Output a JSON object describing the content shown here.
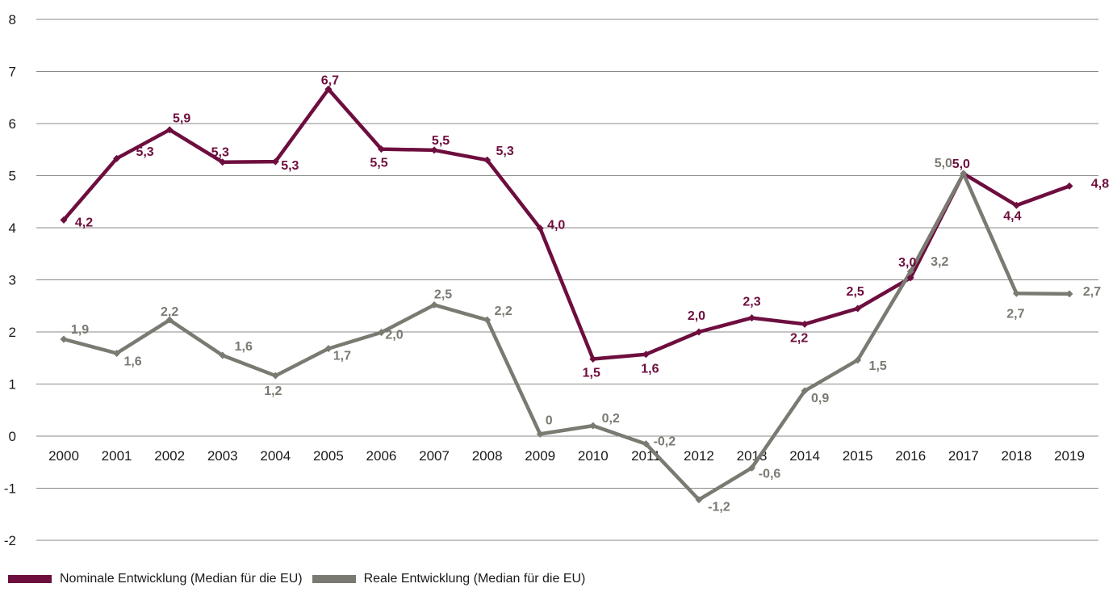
{
  "chart_data": {
    "type": "line",
    "categories": [
      "2000",
      "2001",
      "2002",
      "2003",
      "2004",
      "2005",
      "2006",
      "2007",
      "2008",
      "2009",
      "2010",
      "2011",
      "2012",
      "2013",
      "2014",
      "2015",
      "2016",
      "2017",
      "2018",
      "2019"
    ],
    "ylim": [
      -2,
      8
    ],
    "yticks": [
      "8",
      "7",
      "6",
      "5",
      "4",
      "3",
      "2",
      "1",
      "0",
      "-1",
      "-2"
    ],
    "grid": true,
    "legend_position": "bottom-left",
    "series": [
      {
        "name": "Nominale Entwicklung (Median für die EU)",
        "color": "#6d0e3e",
        "values": [
          4.15,
          5.33,
          5.88,
          5.26,
          5.27,
          6.66,
          5.51,
          5.49,
          5.3,
          3.99,
          1.48,
          1.57,
          2.0,
          2.27,
          2.15,
          2.45,
          3.04,
          5.04,
          4.43,
          4.8
        ],
        "labels": [
          "4,2",
          "5,3",
          "5,9",
          "5,3",
          "5,3",
          "6,7",
          "5,5",
          "5,5",
          "5,3",
          "4,0",
          "1,5",
          "1,6",
          "2,0",
          "2,3",
          "2,2",
          "2,5",
          "3,0",
          "5,0",
          "4,4",
          "4,8"
        ]
      },
      {
        "name": "Reale Entwicklung (Median für die EU)",
        "color": "#7a7a72",
        "values": [
          1.86,
          1.59,
          2.23,
          1.55,
          1.16,
          1.68,
          1.99,
          2.52,
          2.23,
          0.04,
          0.2,
          -0.15,
          -1.22,
          -0.61,
          0.87,
          1.46,
          3.16,
          5.04,
          2.74,
          2.73
        ],
        "labels": [
          "1,9",
          "1,6",
          "2,2",
          "1,6",
          "1,2",
          "1,7",
          "2,0",
          "2,5",
          "2,2",
          "0",
          "0,2",
          "-0,2",
          "-1,2",
          "-0,6",
          "0,9",
          "1,5",
          "3,2",
          "5,0",
          "2,7",
          "2,7"
        ]
      }
    ]
  }
}
